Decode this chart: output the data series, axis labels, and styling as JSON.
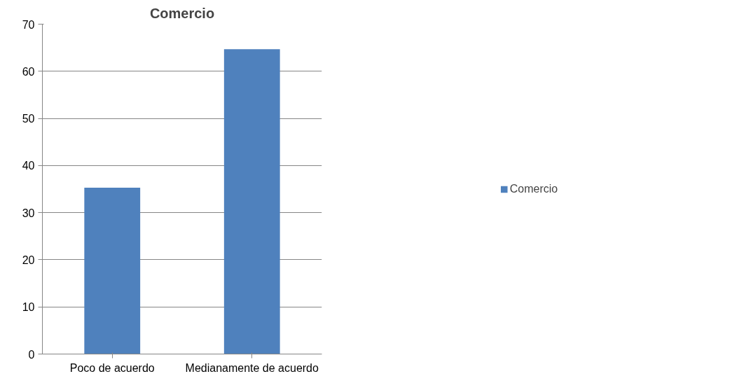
{
  "chart_data": {
    "type": "bar",
    "title": "Comercio",
    "categories": [
      "Poco de acuerdo",
      "Medianamente de acuerdo"
    ],
    "series": [
      {
        "name": "Comercio",
        "color": "#4f81bd",
        "values": [
          35.3,
          64.7
        ]
      }
    ],
    "ylim": [
      0,
      70
    ],
    "yticks": [
      0,
      10,
      20,
      30,
      40,
      50,
      60,
      70
    ],
    "grid": "y",
    "legend": "right"
  }
}
